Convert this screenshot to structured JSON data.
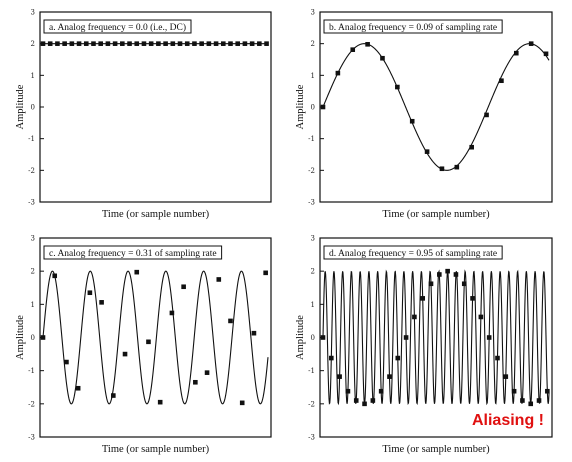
{
  "chart_data": [
    {
      "type": "line",
      "title": "a.  Analog frequency = 0.0  (i.e., DC)",
      "xlabel": "Time (or sample number)",
      "ylabel": "Amplitude",
      "ylim": [
        -3,
        3
      ],
      "yticks": [
        3,
        2,
        1,
        0,
        -1,
        -2,
        -3
      ],
      "grid": false,
      "analog_frequency_fraction": 0.0,
      "amplitude": 2,
      "offset": 2,
      "samples": [
        2,
        2,
        2,
        2,
        2,
        2,
        2,
        2,
        2,
        2,
        2,
        2,
        2,
        2,
        2,
        2,
        2,
        2,
        2,
        2,
        2,
        2,
        2,
        2,
        2,
        2,
        2,
        2,
        2,
        2,
        2,
        2
      ]
    },
    {
      "type": "line",
      "title": "b.  Analog frequency = 0.09 of sampling rate",
      "xlabel": "Time (or sample number)",
      "ylabel": "Amplitude",
      "ylim": [
        -3,
        3
      ],
      "yticks": [
        3,
        2,
        1,
        0,
        -1,
        -2,
        -3
      ],
      "grid": false,
      "analog_frequency_fraction": 0.09,
      "amplitude": 2,
      "samples": [
        0,
        1.07,
        1.81,
        1.98,
        1.54,
        0.63,
        -0.45,
        -1.41,
        -1.95,
        -1.9,
        -1.27,
        -0.25,
        0.83,
        1.7,
        2.0,
        1.68
      ]
    },
    {
      "type": "line",
      "title": "c.  Analog frequency = 0.31 of sampling rate",
      "xlabel": "Time (or sample number)",
      "ylabel": "Amplitude",
      "ylim": [
        -3,
        3
      ],
      "yticks": [
        3,
        2,
        1,
        0,
        -1,
        -2,
        -3
      ],
      "grid": false,
      "analog_frequency_fraction": 0.31,
      "amplitude": 2,
      "samples": [
        0,
        1.86,
        -0.74,
        -1.53,
        1.35,
        1.06,
        -1.75,
        -0.5,
        1.97,
        -0.13,
        -1.95,
        0.74,
        1.53,
        -1.35,
        -1.06,
        1.75,
        0.5,
        -1.97,
        0.13,
        1.95
      ]
    },
    {
      "type": "line",
      "title": "d.  Analog frequency = 0.95 of sampling rate",
      "xlabel": "Time (or sample number)",
      "ylabel": "Amplitude",
      "ylim": [
        -3,
        3
      ],
      "yticks": [
        3,
        2,
        1,
        0,
        -1,
        -2,
        -3
      ],
      "grid": false,
      "analog_frequency_fraction": 0.95,
      "amplitude": 2,
      "samples": [
        0,
        -0.62,
        -1.18,
        -1.62,
        -1.9,
        -2.0,
        -1.9,
        -1.62,
        -1.18,
        -0.62,
        0,
        0.62,
        1.18,
        1.62,
        1.9,
        2.0,
        1.9,
        1.62,
        1.18,
        0.62,
        0,
        -0.62,
        -1.18,
        -1.62,
        -1.9,
        -2.0,
        -1.9,
        -1.62
      ],
      "annotation": "Aliasing !"
    }
  ],
  "colors": {
    "line": "#111111",
    "annotation": "#e01010"
  }
}
